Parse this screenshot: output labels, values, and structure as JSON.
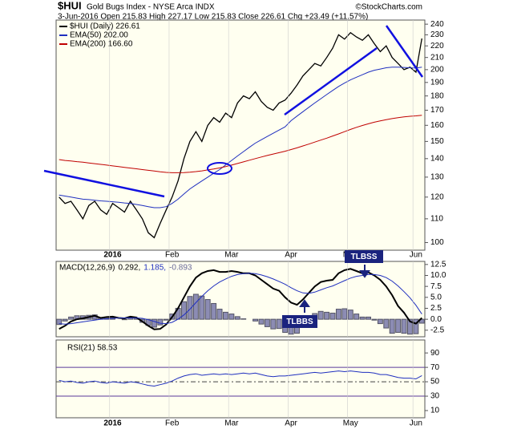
{
  "header": {
    "symbol": "$HUI",
    "name": "Gold Bugs Index - NYSE Arca INDX",
    "source": "©StockCharts.com",
    "info": "3-Jun-2016   Open 215.83  High 227.17  Low 215.83  Close 226.61  Chg +23.49 (+11.57%)"
  },
  "chart_data": [
    {
      "type": "line",
      "log_y": true,
      "legend": "upper left",
      "categories": [
        null,
        null,
        null,
        null,
        null,
        null,
        null,
        null,
        null,
        "2016",
        null,
        null,
        null,
        null,
        null,
        null,
        null,
        null,
        null,
        "Feb",
        null,
        null,
        null,
        null,
        null,
        null,
        null,
        null,
        null,
        "Mar",
        null,
        null,
        null,
        null,
        null,
        null,
        null,
        null,
        null,
        "Apr",
        null,
        null,
        null,
        null,
        null,
        null,
        null,
        null,
        null,
        "May",
        null,
        null,
        null,
        null,
        null,
        null,
        null,
        null,
        null,
        null,
        "Jun",
        null
      ],
      "ylim": [
        97,
        244
      ],
      "yticks": [
        100,
        110,
        120,
        130,
        140,
        150,
        160,
        170,
        180,
        190,
        200,
        210,
        220,
        230,
        240
      ],
      "series": [
        {
          "name": "$HUI (Daily) 226.61",
          "color": "#000000",
          "values": [
            120,
            117,
            118,
            114,
            110,
            116,
            118,
            114,
            112,
            117,
            115,
            113,
            118,
            114,
            110,
            104,
            102,
            108,
            114,
            120,
            128,
            140,
            150,
            156,
            150,
            160,
            165,
            162,
            168,
            165,
            175,
            180,
            178,
            183,
            176,
            172,
            170,
            175,
            177,
            182,
            188,
            195,
            200,
            205,
            203,
            210,
            218,
            230,
            226,
            232,
            228,
            225,
            230,
            222,
            215,
            220,
            210,
            205,
            200,
            202,
            198,
            226.61
          ]
        },
        {
          "name": "EMA(50) 202.00",
          "color": "#1f2fbf",
          "values": [
            121,
            120.5,
            120,
            119.5,
            119,
            118.8,
            118.5,
            118.2,
            118,
            117.8,
            117.5,
            117.2,
            117,
            116.5,
            116,
            115.5,
            115,
            115,
            115.5,
            117,
            119,
            121.5,
            124,
            126,
            128,
            130,
            132,
            134,
            136.5,
            139,
            141.5,
            144,
            146.5,
            149,
            151,
            153,
            155,
            157,
            159,
            163,
            166,
            169,
            172,
            175,
            178,
            181,
            184,
            187,
            189.5,
            192,
            194,
            196,
            198,
            199.5,
            200.5,
            201.5,
            202,
            202,
            201.8,
            201.5,
            201.3,
            202
          ]
        },
        {
          "name": "EMA(200) 166.60",
          "color": "#c00000",
          "values": [
            139.5,
            139,
            138.7,
            138.3,
            138,
            137.6,
            137.2,
            136.8,
            136.4,
            136,
            135.6,
            135.2,
            134.8,
            134.4,
            134,
            133.6,
            133.2,
            132.8,
            132.5,
            132.3,
            132.3,
            132.4,
            132.6,
            132.9,
            133.3,
            133.8,
            134.3,
            134.9,
            135.6,
            136.4,
            137.3,
            138.2,
            139.1,
            140,
            140.9,
            141.8,
            142.6,
            143.4,
            144.2,
            145.2,
            146.2,
            147.3,
            148.4,
            149.6,
            150.8,
            152,
            153.3,
            154.6,
            156,
            157.4,
            158.7,
            159.9,
            161,
            162,
            162.9,
            163.7,
            164.4,
            165,
            165.5,
            165.9,
            166.2,
            166.6
          ]
        }
      ]
    },
    {
      "type": "macd",
      "legend_parts": [
        {
          "text": "MACD(12,26,9)",
          "color": "#000000"
        },
        {
          "text": "0.292,",
          "color": "#000000"
        },
        {
          "text": "1.185,",
          "color": "#1f2fbf"
        },
        {
          "text": "-0.893",
          "color": "#6a6a9a"
        }
      ],
      "annotations": [
        "TLBBS",
        "TLBSS"
      ],
      "ylim": [
        -4,
        13.2
      ],
      "yticks": [
        {
          "value": -2.5,
          "label": "-2.5"
        },
        {
          "value": 0,
          "label": "0.0"
        },
        2.5,
        {
          "value": 5,
          "label": "5.0"
        },
        7.5,
        {
          "value": 10,
          "label": "10.0"
        },
        12.5
      ],
      "series": [
        {
          "kind": "bar",
          "color": "#8c8cb4",
          "values": [
            -1.2,
            -0.4,
            0.5,
            0.8,
            0.8,
            0.9,
            1,
            0.3,
            0.4,
            0.4,
            0,
            -0.1,
            0.3,
            0.1,
            -0.7,
            -1.4,
            -1.8,
            -1.3,
            -0.2,
            1.2,
            2.5,
            4,
            5.2,
            5.7,
            5.3,
            4.5,
            3.6,
            2.3,
            1.6,
            1.2,
            0.6,
            0.1,
            0,
            -0.4,
            -1.1,
            -1.7,
            -2.2,
            -2.1,
            -3,
            -3.4,
            -3.2,
            -1.5,
            0.1,
            1.3,
            1.8,
            1.6,
            1.4,
            2.3,
            2.4,
            2.1,
            1.2,
            0.5,
            0.5,
            -0.2,
            -1,
            -2,
            -3.2,
            -3,
            -3.2,
            -3.4,
            -3.3,
            -0.893
          ]
        },
        {
          "kind": "line",
          "color": "#000000",
          "values": [
            -2.2,
            -1.5,
            -0.5,
            0,
            0.2,
            0.5,
            0.8,
            0.3,
            0.5,
            0.6,
            0.3,
            0.2,
            0.6,
            0.4,
            -0.5,
            -1.5,
            -2.3,
            -2.2,
            -1.2,
            0.5,
            2.5,
            5,
            7.5,
            9.5,
            10.5,
            11,
            11.2,
            10.8,
            10.8,
            11,
            10.8,
            10.5,
            10.5,
            10,
            9,
            8,
            7,
            6.5,
            5,
            3.8,
            3.3,
            4.5,
            6,
            7.5,
            8.5,
            8.8,
            9,
            10.5,
            11.2,
            11.5,
            11,
            10.5,
            10.7,
            10,
            9,
            7.5,
            5.5,
            3,
            1.5,
            -0.5,
            -1,
            0.292
          ]
        },
        {
          "kind": "line",
          "color": "#1f2fbf",
          "values": [
            -1,
            -1.1,
            -1,
            -0.8,
            -0.6,
            -0.4,
            -0.2,
            0,
            0.1,
            0.2,
            0.3,
            0.3,
            0.3,
            0.3,
            0.2,
            -0.1,
            -0.5,
            -0.9,
            -1,
            -0.7,
            0,
            1,
            2.3,
            3.8,
            5.2,
            6.5,
            7.6,
            8.5,
            9.2,
            9.8,
            10.2,
            10.4,
            10.5,
            10.4,
            10.1,
            9.7,
            9.2,
            8.6,
            8,
            7.2,
            6.5,
            6,
            5.9,
            6.2,
            6.7,
            7.2,
            7.6,
            8.2,
            8.8,
            9.4,
            9.8,
            10,
            10.2,
            10.2,
            10,
            9.5,
            8.7,
            7.6,
            6.3,
            4.9,
            3.2,
            1.185
          ]
        }
      ]
    },
    {
      "type": "line",
      "legend_text": "RSI(21) 58.53",
      "ylim": [
        0,
        108
      ],
      "yticks": [
        10,
        30,
        50,
        70,
        90
      ],
      "ref_lines": [
        {
          "value": 70,
          "style": "solid"
        },
        {
          "value": 50,
          "style": "dashed"
        },
        {
          "value": 30,
          "style": "solid"
        }
      ],
      "series": [
        {
          "color": "#1f2fbf",
          "values": [
            52,
            50,
            51,
            49,
            48,
            50,
            51,
            49,
            48,
            50,
            49,
            48,
            50,
            49,
            47,
            45,
            44,
            46,
            48,
            51,
            55,
            58,
            60,
            61,
            59,
            60,
            61,
            60,
            61,
            60,
            61,
            62,
            61,
            62,
            60,
            58,
            57,
            58,
            58,
            59,
            60,
            61,
            62,
            63,
            62,
            63,
            64,
            65,
            64,
            65,
            64,
            63,
            63,
            62,
            60,
            60,
            58,
            56,
            55,
            55,
            54,
            58.53
          ]
        }
      ]
    }
  ]
}
